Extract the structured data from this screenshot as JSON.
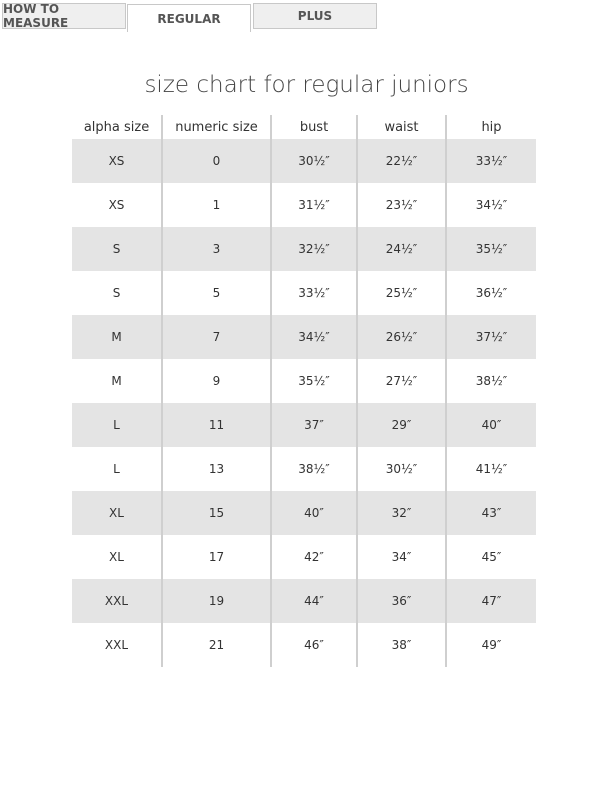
{
  "tabs": [
    {
      "label": "HOW TO MEASURE",
      "active": false
    },
    {
      "label": "REGULAR",
      "active": true
    },
    {
      "label": "PLUS",
      "active": false
    }
  ],
  "title": "size chart for regular juniors",
  "table": {
    "headers": [
      "alpha size",
      "numeric size",
      "bust",
      "waist",
      "hip"
    ],
    "rows": [
      [
        "XS",
        "0",
        "30½″",
        "22½″",
        "33½″"
      ],
      [
        "XS",
        "1",
        "31½″",
        "23½″",
        "34½″"
      ],
      [
        "S",
        "3",
        "32½″",
        "24½″",
        "35½″"
      ],
      [
        "S",
        "5",
        "33½″",
        "25½″",
        "36½″"
      ],
      [
        "M",
        "7",
        "34½″",
        "26½″",
        "37½″"
      ],
      [
        "M",
        "9",
        "35½″",
        "27½″",
        "38½″"
      ],
      [
        "L",
        "11",
        "37″",
        "29″",
        "40″"
      ],
      [
        "L",
        "13",
        "38½″",
        "30½″",
        "41½″"
      ],
      [
        "XL",
        "15",
        "40″",
        "32″",
        "43″"
      ],
      [
        "XL",
        "17",
        "42″",
        "34″",
        "45″"
      ],
      [
        "XXL",
        "19",
        "44″",
        "36″",
        "47″"
      ],
      [
        "XXL",
        "21",
        "46″",
        "38″",
        "49″"
      ]
    ]
  }
}
